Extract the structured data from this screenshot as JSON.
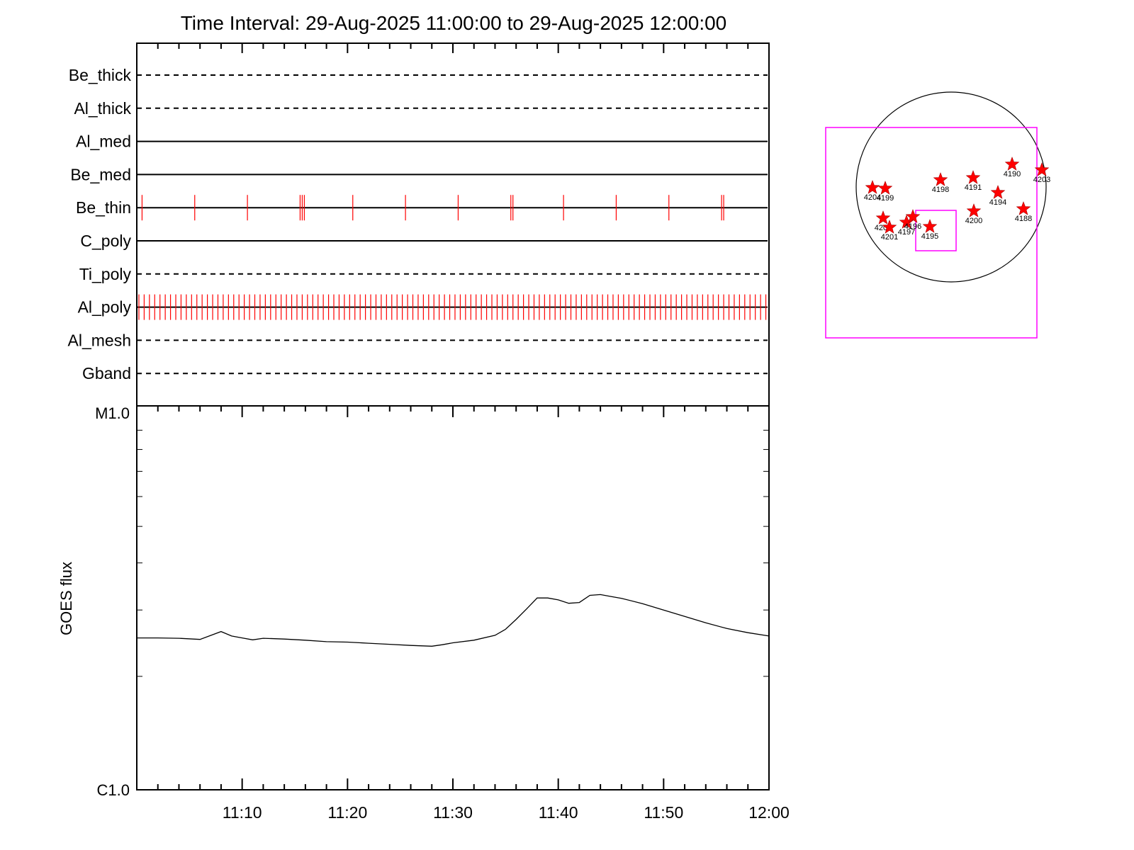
{
  "title": "Time Interval: 29-Aug-2025 11:00:00 to 29-Aug-2025 12:00:00",
  "colors": {
    "event": "#ff0000",
    "fov": "#ff00ff",
    "axis": "#000000"
  },
  "chart_data": [
    {
      "type": "timeline",
      "x_range": [
        "11:00",
        "12:00"
      ],
      "filters": [
        {
          "name": "Be_thick",
          "style": "dashed",
          "events": []
        },
        {
          "name": "Al_thick",
          "style": "dashed",
          "events": []
        },
        {
          "name": "Al_med",
          "style": "solid",
          "events": []
        },
        {
          "name": "Be_med",
          "style": "solid",
          "events": []
        },
        {
          "name": "Be_thin",
          "style": "solid",
          "events": [
            0.5,
            5.5,
            10.5,
            15.5,
            15.7,
            15.9,
            20.5,
            25.5,
            30.5,
            35.5,
            35.7,
            40.5,
            45.5,
            50.5,
            55.5,
            55.7
          ]
        },
        {
          "name": "C_poly",
          "style": "solid",
          "events": []
        },
        {
          "name": "Ti_poly",
          "style": "dashed",
          "events": []
        },
        {
          "name": "Al_poly",
          "style": "solid",
          "events": "periodic ~0.5 min, 0.2 to 59.9"
        },
        {
          "name": "Al_mesh",
          "style": "dashed",
          "events": []
        },
        {
          "name": "Gband",
          "style": "dashed",
          "events": []
        }
      ]
    },
    {
      "type": "line",
      "ylabel": "GOES flux",
      "y_scale": "log",
      "ylim": [
        "C1.0",
        "M1.0"
      ],
      "y_tick_labels": [
        "M1.0",
        "C1.0"
      ],
      "x_tick_labels": [
        "11:10",
        "11:20",
        "11:30",
        "11:40",
        "11:50",
        "12:00"
      ],
      "x_ticks_min": [
        10,
        20,
        30,
        40,
        50,
        60
      ],
      "xlim_min": [
        0,
        60
      ],
      "ylim_log": [
        -6,
        -5
      ],
      "series": [
        {
          "x": [
            0,
            2,
            4,
            6,
            8,
            9,
            10,
            11,
            12,
            14,
            16,
            18,
            20,
            22,
            24,
            26,
            28,
            29,
            30,
            32,
            34,
            35,
            36,
            37,
            38,
            39,
            40,
            41,
            42,
            43,
            44,
            45,
            46,
            48,
            50,
            52,
            54,
            56,
            58,
            60
          ],
          "y": [
            -5.597,
            -5.597,
            -5.598,
            -5.601,
            -5.58,
            -5.592,
            -5.597,
            -5.602,
            -5.598,
            -5.6,
            -5.603,
            -5.607,
            -5.608,
            -5.611,
            -5.614,
            -5.617,
            -5.619,
            -5.615,
            -5.61,
            -5.603,
            -5.59,
            -5.574,
            -5.548,
            -5.52,
            -5.491,
            -5.491,
            -5.496,
            -5.505,
            -5.503,
            -5.484,
            -5.482,
            -5.487,
            -5.492,
            -5.506,
            -5.523,
            -5.54,
            -5.557,
            -5.572,
            -5.583,
            -5.592
          ]
        }
      ]
    }
  ],
  "context_map": {
    "regions": [
      {
        "id": "4190",
        "label": "4190"
      },
      {
        "id": "4203",
        "label": "4203"
      },
      {
        "id": "4198",
        "label": "4198"
      },
      {
        "id": "4191",
        "label": "4191"
      },
      {
        "id": "4194",
        "label": "4194"
      },
      {
        "id": "4204",
        "label": "4204"
      },
      {
        "id": "4199",
        "label": "4199"
      },
      {
        "id": "4200",
        "label": "4200"
      },
      {
        "id": "4188",
        "label": "4188"
      },
      {
        "id": "4202",
        "label": "4202"
      },
      {
        "id": "4201",
        "label": "4201"
      },
      {
        "id": "4197",
        "label": "4197"
      },
      {
        "id": "4196",
        "label": "4196"
      },
      {
        "id": "4195",
        "label": "4195"
      }
    ]
  }
}
